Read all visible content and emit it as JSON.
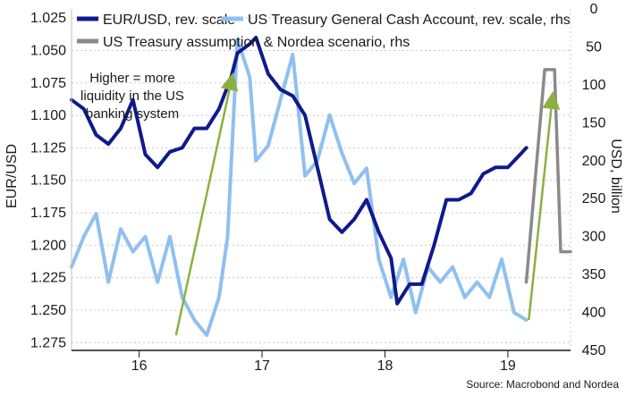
{
  "chart_data": {
    "type": "line",
    "xlabel": "",
    "ylabel_left": "EUR/USD",
    "ylabel_right": "USD, billion",
    "x_ticks": [
      "16",
      "17",
      "18",
      "19"
    ],
    "y_left_ticks": [
      "1.275",
      "1.250",
      "1.225",
      "1.200",
      "1.175",
      "1.150",
      "1.125",
      "1.100",
      "1.075",
      "1.050",
      "1.025"
    ],
    "y_right_ticks": [
      "0",
      "50",
      "100",
      "150",
      "200",
      "250",
      "300",
      "350",
      "400",
      "450"
    ],
    "y_left_range": [
      1.018,
      1.281
    ],
    "y_right_range": [
      0,
      450
    ],
    "y_left_reversed": true,
    "y_right_reversed": true,
    "x_range": [
      2015.45,
      2019.51
    ],
    "grid": "horizontal dashed",
    "legend_placement": "top",
    "annotation": [
      "Higher = more",
      "liquidity in the US",
      "banking system"
    ],
    "source": "Source: Macrobond and Nordea",
    "colors": {
      "eurusd": "#0f1a8c",
      "tga": "#8fc0ef",
      "scenario": "#8a8a8a",
      "arrow": "#8cb040"
    },
    "series": [
      {
        "name": "EUR/USD, rev. scale",
        "axis": "left",
        "x": [
          2015.45,
          2015.55,
          2015.65,
          2015.75,
          2015.85,
          2015.95,
          2016.05,
          2016.15,
          2016.25,
          2016.35,
          2016.45,
          2016.55,
          2016.65,
          2016.75,
          2016.8,
          2016.9,
          2016.95,
          2017.05,
          2017.15,
          2017.25,
          2017.35,
          2017.45,
          2017.55,
          2017.65,
          2017.75,
          2017.85,
          2017.95,
          2018.05,
          2018.1,
          2018.2,
          2018.3,
          2018.4,
          2018.5,
          2018.6,
          2018.7,
          2018.8,
          2018.9,
          2019.0,
          2019.1,
          2019.15
        ],
        "y": [
          1.088,
          1.095,
          1.115,
          1.122,
          1.11,
          1.088,
          1.13,
          1.14,
          1.128,
          1.125,
          1.11,
          1.11,
          1.095,
          1.07,
          1.052,
          1.045,
          1.04,
          1.068,
          1.08,
          1.085,
          1.1,
          1.14,
          1.18,
          1.19,
          1.18,
          1.165,
          1.19,
          1.21,
          1.245,
          1.23,
          1.23,
          1.2,
          1.165,
          1.165,
          1.16,
          1.145,
          1.14,
          1.14,
          1.13,
          1.125
        ]
      },
      {
        "name": "US Treasury General Cash Account, rev. scale, rhs",
        "axis": "right",
        "x": [
          2015.45,
          2015.55,
          2015.65,
          2015.75,
          2015.85,
          2015.95,
          2016.05,
          2016.15,
          2016.25,
          2016.35,
          2016.45,
          2016.55,
          2016.65,
          2016.72,
          2016.8,
          2016.9,
          2016.95,
          2017.05,
          2017.15,
          2017.25,
          2017.35,
          2017.45,
          2017.55,
          2017.65,
          2017.75,
          2017.85,
          2017.95,
          2018.05,
          2018.15,
          2018.25,
          2018.35,
          2018.45,
          2018.55,
          2018.65,
          2018.75,
          2018.85,
          2018.95,
          2019.05,
          2019.15
        ],
        "y": [
          340,
          300,
          270,
          360,
          290,
          320,
          300,
          360,
          300,
          380,
          410,
          430,
          380,
          300,
          40,
          90,
          200,
          180,
          120,
          60,
          220,
          200,
          140,
          190,
          230,
          210,
          330,
          380,
          330,
          400,
          340,
          360,
          340,
          380,
          360,
          380,
          330,
          400,
          410
        ]
      },
      {
        "name": "US Treasury assumption & Nordea scenario, rhs",
        "axis": "right",
        "x": [
          2019.15,
          2019.3,
          2019.38,
          2019.43,
          2019.51
        ],
        "y": [
          360,
          80,
          80,
          320,
          320
        ]
      }
    ]
  }
}
